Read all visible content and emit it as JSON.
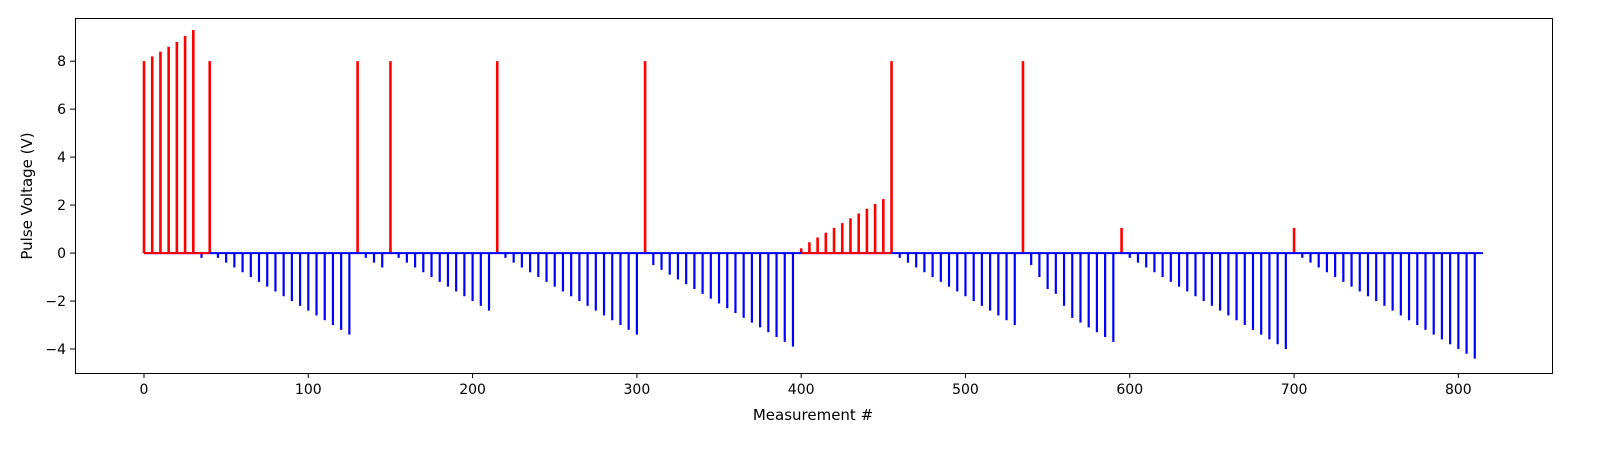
{
  "chart_data": {
    "type": "bar",
    "title": "",
    "xlabel": "Measurement #",
    "ylabel": "Pulse Voltage (V)",
    "xlim": [
      -42,
      857
    ],
    "ylim": [
      -5.0,
      9.8
    ],
    "xticks": [
      0,
      100,
      200,
      300,
      400,
      500,
      600,
      700,
      800
    ],
    "yticks": [
      -4,
      -2,
      0,
      2,
      4,
      6,
      8
    ],
    "xtick_labels": [
      "0",
      "100",
      "200",
      "300",
      "400",
      "500",
      "600",
      "700",
      "800"
    ],
    "ytick_labels": [
      "−4",
      "−2",
      "0",
      "2",
      "4",
      "6",
      "8"
    ],
    "grid": false,
    "colors": {
      "positive": "#ff0000",
      "negative": "#0000ff",
      "baseline": "#0000ff"
    },
    "baseline_range": [
      0,
      815
    ],
    "series": [
      {
        "color": "#ff0000",
        "x": [
          0,
          5,
          10,
          15,
          20,
          25,
          30,
          40,
          130,
          150,
          215,
          305,
          400,
          405,
          410,
          415,
          420,
          425,
          430,
          435,
          440,
          445,
          450,
          455,
          535,
          595,
          700
        ],
        "values": [
          8.0,
          8.2,
          8.4,
          8.6,
          8.8,
          9.05,
          9.3,
          8.0,
          8.0,
          8.0,
          8.0,
          8.0,
          0.2,
          0.45,
          0.65,
          0.85,
          1.05,
          1.25,
          1.45,
          1.65,
          1.85,
          2.05,
          2.25,
          8.0,
          8.0,
          1.05,
          1.05
        ]
      },
      {
        "color": "#0000ff",
        "x": [
          35,
          45,
          50,
          55,
          60,
          65,
          70,
          75,
          80,
          85,
          90,
          95,
          100,
          105,
          110,
          115,
          120,
          125,
          135,
          140,
          145,
          155,
          160,
          165,
          170,
          175,
          180,
          185,
          190,
          195,
          200,
          205,
          210,
          220,
          225,
          230,
          235,
          240,
          245,
          250,
          255,
          260,
          265,
          270,
          275,
          280,
          285,
          290,
          295,
          300,
          310,
          315,
          320,
          325,
          330,
          335,
          340,
          345,
          350,
          355,
          360,
          365,
          370,
          375,
          380,
          385,
          390,
          395,
          460,
          465,
          470,
          475,
          480,
          485,
          490,
          495,
          500,
          505,
          510,
          515,
          520,
          525,
          530,
          540,
          545,
          550,
          555,
          560,
          565,
          570,
          575,
          580,
          585,
          590,
          600,
          605,
          610,
          615,
          620,
          625,
          630,
          635,
          640,
          645,
          650,
          655,
          660,
          665,
          670,
          675,
          680,
          685,
          690,
          695,
          705,
          710,
          715,
          720,
          725,
          730,
          735,
          740,
          745,
          750,
          755,
          760,
          765,
          770,
          775,
          780,
          785,
          790,
          795,
          800,
          805,
          810
        ],
        "values": [
          -0.2,
          -0.2,
          -0.4,
          -0.6,
          -0.8,
          -1.0,
          -1.2,
          -1.4,
          -1.6,
          -1.8,
          -2.0,
          -2.2,
          -2.4,
          -2.6,
          -2.8,
          -3.0,
          -3.2,
          -3.4,
          -0.2,
          -0.4,
          -0.6,
          -0.2,
          -0.4,
          -0.6,
          -0.8,
          -1.0,
          -1.2,
          -1.4,
          -1.6,
          -1.8,
          -2.0,
          -2.2,
          -2.4,
          -0.2,
          -0.4,
          -0.6,
          -0.8,
          -1.0,
          -1.2,
          -1.4,
          -1.6,
          -1.8,
          -2.0,
          -2.2,
          -2.4,
          -2.6,
          -2.8,
          -3.0,
          -3.2,
          -3.4,
          -0.5,
          -0.7,
          -0.9,
          -1.1,
          -1.3,
          -1.5,
          -1.7,
          -1.9,
          -2.1,
          -2.3,
          -2.5,
          -2.7,
          -2.9,
          -3.1,
          -3.3,
          -3.5,
          -3.7,
          -3.9,
          -0.2,
          -0.4,
          -0.6,
          -0.8,
          -1.0,
          -1.2,
          -1.4,
          -1.6,
          -1.8,
          -2.0,
          -2.2,
          -2.4,
          -2.6,
          -2.8,
          -3.0,
          -0.5,
          -1.0,
          -1.5,
          -1.7,
          -2.2,
          -2.7,
          -2.9,
          -3.1,
          -3.3,
          -3.5,
          -3.7,
          -0.2,
          -0.4,
          -0.6,
          -0.8,
          -1.0,
          -1.2,
          -1.4,
          -1.6,
          -1.8,
          -2.0,
          -2.2,
          -2.4,
          -2.6,
          -2.8,
          -3.0,
          -3.2,
          -3.4,
          -3.6,
          -3.8,
          -4.0,
          -0.2,
          -0.4,
          -0.6,
          -0.8,
          -1.0,
          -1.2,
          -1.4,
          -1.6,
          -1.8,
          -2.0,
          -2.2,
          -2.4,
          -2.6,
          -2.8,
          -3.0,
          -3.2,
          -3.4,
          -3.6,
          -3.8,
          -4.0,
          -4.2,
          -4.4
        ]
      }
    ]
  }
}
